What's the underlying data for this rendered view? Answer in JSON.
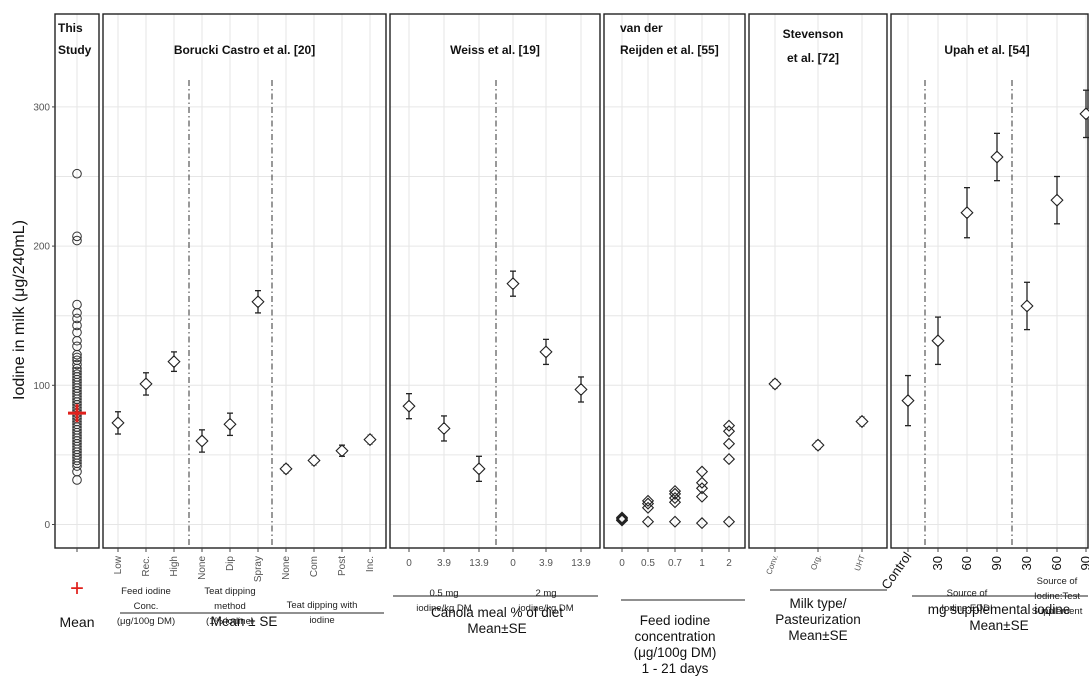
{
  "y_axis_label": "Iodine in milk (μg/240mL)",
  "chart_data": {
    "type": "scatter",
    "ylabel": "Iodine in milk (μg/240mL)",
    "ylim": [
      -25,
      360
    ],
    "yticks": [
      0,
      100,
      200,
      300
    ],
    "grid": true,
    "panels": [
      {
        "id": "this-study",
        "title_lines": [
          "This",
          "Study"
        ],
        "x_labels": [
          ""
        ],
        "this_study_points": [
          252,
          207,
          204,
          158,
          152,
          148,
          143,
          138,
          132,
          128,
          122,
          120,
          118,
          115,
          112,
          110,
          108,
          106,
          104,
          102,
          100,
          98,
          96,
          94,
          92,
          90,
          88,
          86,
          84,
          82,
          80,
          78,
          76,
          74,
          72,
          70,
          68,
          66,
          64,
          62,
          60,
          58,
          56,
          54,
          52,
          50,
          48,
          46,
          44,
          42,
          38,
          32
        ],
        "mean": 80,
        "mean_label": "Mean",
        "legend_marker_label": "+"
      },
      {
        "id": "borucki",
        "title_lines": [
          "Borucki Castro et al. [20]"
        ],
        "x_labels": [
          "Low",
          "Rec.",
          "High",
          "None",
          "Dip",
          "Spray",
          "None",
          "Com",
          "Post",
          "Inc."
        ],
        "points": [
          {
            "y": 73,
            "se": 8
          },
          {
            "y": 101,
            "se": 8
          },
          {
            "y": 117,
            "se": 7
          },
          {
            "y": 60,
            "se": 8
          },
          {
            "y": 72,
            "se": 8
          },
          {
            "y": 160,
            "se": 8
          },
          {
            "y": 40,
            "se": 3
          },
          {
            "y": 46,
            "se": 3
          },
          {
            "y": 53,
            "se": 4
          },
          {
            "y": 61,
            "se": 3
          }
        ],
        "divider_after": [
          3,
          6
        ],
        "groups": [
          {
            "label_lines": [
              "Feed iodine",
              "Conc.",
              "(μg/100g DM)"
            ],
            "from": 0,
            "to": 3
          },
          {
            "label_lines": [
              "Teat dipping",
              "method",
              "(1% iodine)"
            ],
            "from": 3,
            "to": 6
          },
          {
            "label_lines": [
              "Teat dipping with",
              "iodine"
            ],
            "from": 6,
            "to": 10
          }
        ],
        "footer": [
          "Mean ± SE"
        ]
      },
      {
        "id": "weiss",
        "title_lines": [
          "Weiss et al. [19]"
        ],
        "x_labels": [
          "0",
          "3.9",
          "13.9",
          "0",
          "3.9",
          "13.9"
        ],
        "points": [
          {
            "y": 85,
            "se": 9
          },
          {
            "y": 69,
            "se": 9
          },
          {
            "y": 40,
            "se": 9
          },
          {
            "y": 173,
            "se": 9
          },
          {
            "y": 124,
            "se": 9
          },
          {
            "y": 97,
            "se": 9
          }
        ],
        "divider_after": [
          3
        ],
        "groups": [
          {
            "label_lines": [
              "0.5 mg",
              "iodine/kg DM"
            ],
            "from": 0,
            "to": 3
          },
          {
            "label_lines": [
              "2 mg",
              "iodine/kg DM"
            ],
            "from": 3,
            "to": 6
          }
        ],
        "footer": [
          "Canola meal % of diet",
          "Mean±SE"
        ]
      },
      {
        "id": "reijden",
        "title_lines": [
          "van der",
          "Reijden et al. [55]"
        ],
        "x_labels": [
          "0",
          "0.5",
          "0.7",
          "1",
          "2"
        ],
        "raw_points": [
          [
            0,
            3
          ],
          [
            0,
            4
          ],
          [
            0,
            5
          ],
          [
            0,
            3
          ],
          [
            0,
            4
          ],
          [
            1,
            2
          ],
          [
            1,
            12
          ],
          [
            1,
            15
          ],
          [
            1,
            17
          ],
          [
            2,
            2
          ],
          [
            2,
            16
          ],
          [
            2,
            19
          ],
          [
            2,
            22
          ],
          [
            2,
            24
          ],
          [
            3,
            1
          ],
          [
            3,
            20
          ],
          [
            3,
            26
          ],
          [
            3,
            30
          ],
          [
            3,
            38
          ],
          [
            4,
            2
          ],
          [
            4,
            47
          ],
          [
            4,
            58
          ],
          [
            4,
            67
          ],
          [
            4,
            71
          ]
        ],
        "footer": [
          "Feed iodine",
          "concentration",
          "(μg/100g DM)",
          "1 - 21 days"
        ]
      },
      {
        "id": "stevenson",
        "title_lines": [
          "Stevenson",
          "et al. [72]"
        ],
        "x_labels": [
          "Conv.",
          "Org.",
          "UHT"
        ],
        "points": [
          {
            "y": 101,
            "se": 3
          },
          {
            "y": 57,
            "se": 3
          },
          {
            "y": 74,
            "se": 3
          }
        ],
        "footer": [
          "Milk type/",
          "Pasteurization",
          "Mean±SE"
        ]
      },
      {
        "id": "upah",
        "title_lines": [
          "Upah et al. [54]"
        ],
        "x_labels": [
          "Control",
          "30",
          "60",
          "90",
          "30",
          "60",
          "90"
        ],
        "points": [
          {
            "y": 89,
            "se": 18
          },
          {
            "y": 132,
            "se": 17
          },
          {
            "y": 224,
            "se": 18
          },
          {
            "y": 264,
            "se": 17
          },
          {
            "y": 157,
            "se": 17
          },
          {
            "y": 233,
            "se": 17
          },
          {
            "y": 295,
            "se": 17
          }
        ],
        "divider_after": [
          1,
          4
        ],
        "groups": [
          {
            "label_lines": [
              "Source of",
              "Iodine:EDDI"
            ],
            "from": 1,
            "to": 4
          },
          {
            "label_lines": [
              "Source of",
              "Iodine:Test",
              "Supplement"
            ],
            "from": 4,
            "to": 7
          }
        ],
        "footer": [
          "mg supplemental iodine",
          "Mean±SE"
        ]
      }
    ]
  }
}
